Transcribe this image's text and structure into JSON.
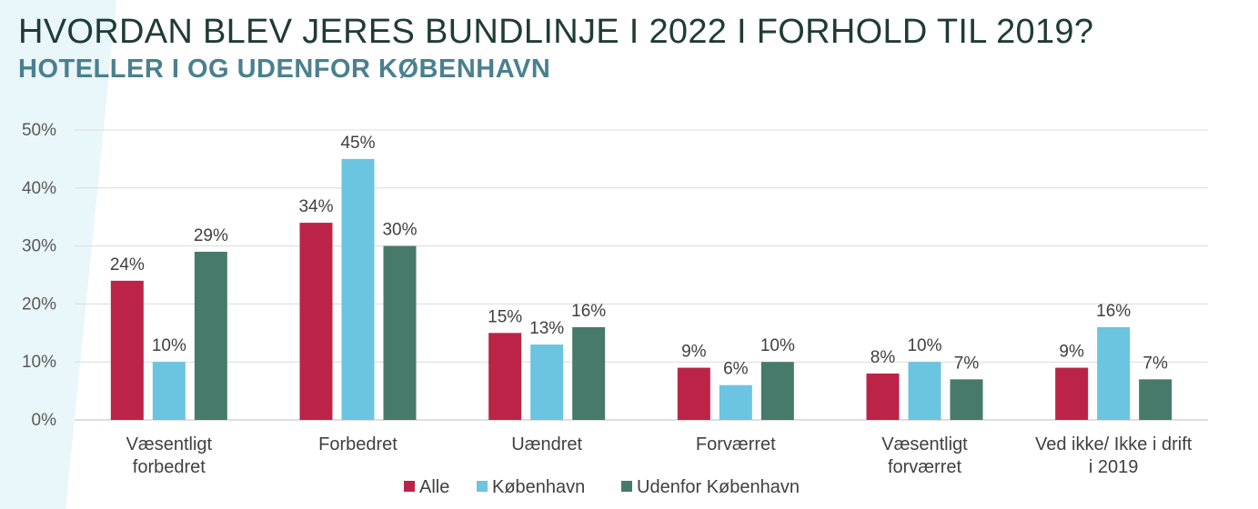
{
  "title": "HVORDAN BLEV JERES BUNDLINJE I 2022 I FORHOLD TIL 2019?",
  "subtitle": "HOTELLER I OG UDENFOR KØBENHAVN",
  "colors": {
    "Alle": "#bc2447",
    "København": "#6bc4e0",
    "Udenfor København": "#477a6b"
  },
  "chart_data": {
    "type": "bar",
    "title": "HVORDAN BLEV JERES BUNDLINJE I 2022 I FORHOLD TIL 2019?",
    "subtitle": "HOTELLER I OG UDENFOR KØBENHAVN",
    "categories": [
      [
        "Væsentligt",
        "forbedret"
      ],
      [
        "Forbedret"
      ],
      [
        "Uændret"
      ],
      [
        "Forværret"
      ],
      [
        "Væsentligt",
        "forværret"
      ],
      [
        "Ved ikke/ Ikke i drift",
        "i 2019"
      ]
    ],
    "series": [
      {
        "name": "Alle",
        "values": [
          24,
          34,
          15,
          9,
          8,
          9
        ]
      },
      {
        "name": "København",
        "values": [
          10,
          45,
          13,
          6,
          10,
          16
        ]
      },
      {
        "name": "Udenfor København",
        "values": [
          29,
          30,
          16,
          10,
          7,
          7
        ]
      }
    ],
    "data_labels": [
      [
        "24%",
        "34%",
        "15%",
        "9%",
        "8%",
        "9%"
      ],
      [
        "10%",
        "45%",
        "13%",
        "6%",
        "10%",
        "16%"
      ],
      [
        "29%",
        "30%",
        "16%",
        "10%",
        "7%",
        "7%"
      ]
    ],
    "ylim": [
      0,
      50
    ],
    "yticks": [
      0,
      10,
      20,
      30,
      40,
      50
    ],
    "ytick_labels": [
      "0%",
      "10%",
      "20%",
      "30%",
      "40%",
      "50%"
    ],
    "xlabel": "",
    "ylabel": "",
    "grid": true,
    "legend": "bottom"
  }
}
